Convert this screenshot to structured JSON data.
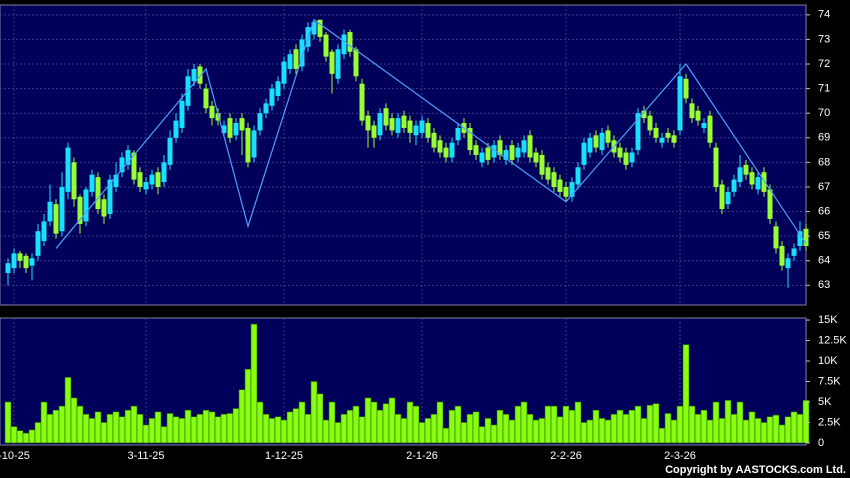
{
  "chart_data": {
    "type": "candlestick",
    "copyright": "Copyright by AASTOCKS.com Ltd.",
    "categories": [
      null,
      "-10-25",
      null,
      null,
      null,
      null,
      null,
      null,
      null,
      null,
      null,
      null,
      null,
      null,
      null,
      null,
      null,
      null,
      null,
      null,
      null,
      null,
      null,
      "3-11-25",
      null,
      null,
      null,
      null,
      null,
      null,
      null,
      null,
      null,
      null,
      null,
      null,
      null,
      null,
      null,
      null,
      null,
      null,
      null,
      null,
      null,
      null,
      "1-12-25",
      null,
      null,
      null,
      null,
      null,
      null,
      null,
      null,
      null,
      null,
      null,
      null,
      null,
      null,
      null,
      null,
      null,
      null,
      null,
      null,
      null,
      null,
      "2-1-26",
      null,
      null,
      null,
      null,
      null,
      null,
      null,
      null,
      null,
      null,
      null,
      null,
      null,
      null,
      null,
      null,
      null,
      null,
      null,
      null,
      null,
      null,
      null,
      "2-2-26",
      null,
      null,
      null,
      null,
      null,
      null,
      null,
      null,
      null,
      null,
      null,
      null,
      null,
      null,
      null,
      null,
      null,
      null,
      "2-3-26",
      null,
      null,
      null,
      null,
      null,
      null,
      null,
      null,
      null,
      null,
      null,
      null,
      null,
      null,
      null,
      null,
      null,
      null,
      null,
      null,
      null
    ],
    "open": [
      63.5,
      63.7,
      64.3,
      64.2,
      63.8,
      64.2,
      64.8,
      65.6,
      66.3,
      65.2,
      66.8,
      68.0,
      66.6,
      65.6,
      66.8,
      67.4,
      66.5,
      65.9,
      67.0,
      67.6,
      67.9,
      68.4,
      67.6,
      66.9,
      67.1,
      67.6,
      67.2,
      67.9,
      69.0,
      69.4,
      70.3,
      71.3,
      71.9,
      71.0,
      70.3,
      70.0,
      69.2,
      69.8,
      69.1,
      69.8,
      69.4,
      68.2,
      69.3,
      70.0,
      70.3,
      70.7,
      71.2,
      71.8,
      72.6,
      71.9,
      72.7,
      73.2,
      73.8,
      73.2,
      72.5,
      71.4,
      72.4,
      73.3,
      72.6,
      71.2,
      69.9,
      69.5,
      69.1,
      70.2,
      69.8,
      69.2,
      69.9,
      69.7,
      69.1,
      69.2,
      69.6,
      69.2,
      68.9,
      68.6,
      68.2,
      68.9,
      69.6,
      69.4,
      68.7,
      68.0,
      68.6,
      68.2,
      68.9,
      68.1,
      68.7,
      68.2,
      68.4,
      69.1,
      68.4,
      68.3,
      67.8,
      67.6,
      67.3,
      67.0,
      66.6,
      67.1,
      67.9,
      68.4,
      69.1,
      68.5,
      69.3,
      68.9,
      68.6,
      68.4,
      68.0,
      68.5,
      70.1,
      69.9,
      69.4,
      68.8,
      69.2,
      69.1,
      69.3,
      71.4,
      70.4,
      70.1,
      69.4,
      69.9,
      68.6,
      67.1,
      66.3,
      66.8,
      67.2,
      67.9,
      67.6,
      66.9,
      67.6,
      66.9,
      65.4,
      64.6,
      63.7,
      64.2,
      64.6,
      65.3
    ],
    "high": [
      64.1,
      64.5,
      64.4,
      64.3,
      64.3,
      65.5,
      65.9,
      67.1,
      66.5,
      67.6,
      68.8,
      68.2,
      66.7,
      67.0,
      67.7,
      67.6,
      66.7,
      67.5,
      68.0,
      68.4,
      68.7,
      68.5,
      67.8,
      67.4,
      67.7,
      67.8,
      68.3,
      69.3,
      70.0,
      70.8,
      71.8,
      72.0,
      72.0,
      71.2,
      70.5,
      70.2,
      69.7,
      70.0,
      69.8,
      70.0,
      69.6,
      69.5,
      70.2,
      70.6,
      71.2,
      71.5,
      72.3,
      72.6,
      72.8,
      73.2,
      73.7,
      73.8,
      73.8,
      73.3,
      72.6,
      72.8,
      73.4,
      73.4,
      72.7,
      71.4,
      70.1,
      69.7,
      70.2,
      70.4,
      70.0,
      70.0,
      70.1,
      69.9,
      69.7,
      69.9,
      69.8,
      69.4,
      69.1,
      68.8,
      69.0,
      69.6,
      69.8,
      69.6,
      68.9,
      68.6,
      68.8,
      68.9,
      69.1,
      68.7,
      68.9,
      68.8,
      69.1,
      69.3,
      68.6,
      68.5,
      68.0,
      67.8,
      67.5,
      67.2,
      67.4,
      68.0,
      69.0,
      69.2,
      69.3,
      69.4,
      69.5,
      69.1,
      68.8,
      68.6,
      68.6,
      70.2,
      70.3,
      70.1,
      69.6,
      69.2,
      69.4,
      69.3,
      72.0,
      71.6,
      70.6,
      70.3,
      69.8,
      70.1,
      68.8,
      67.3,
      67.0,
      67.5,
      68.3,
      68.1,
      67.8,
      67.6,
      67.8,
      67.1,
      65.6,
      64.8,
      64.3,
      64.7,
      65.6,
      65.5
    ],
    "low": [
      63.0,
      63.5,
      63.7,
      63.5,
      63.2,
      64.0,
      64.6,
      65.4,
      64.9,
      65.0,
      66.5,
      66.2,
      65.1,
      65.4,
      66.6,
      65.9,
      65.5,
      65.7,
      66.8,
      67.4,
      67.7,
      67.1,
      66.8,
      66.7,
      66.9,
      66.7,
      67.0,
      67.7,
      68.8,
      69.2,
      70.1,
      71.1,
      71.0,
      70.0,
      69.5,
      69.5,
      69.0,
      68.8,
      68.9,
      68.3,
      67.8,
      68.0,
      69.1,
      69.8,
      70.1,
      70.5,
      71.0,
      71.6,
      71.6,
      71.7,
      72.5,
      73.0,
      72.9,
      72.1,
      70.8,
      71.2,
      72.2,
      72.3,
      71.3,
      69.5,
      68.6,
      68.6,
      68.9,
      69.3,
      69.1,
      69.0,
      69.2,
      68.8,
      68.7,
      69.0,
      68.8,
      68.4,
      68.2,
      68.0,
      68.0,
      68.7,
      69.0,
      68.3,
      68.1,
      67.8,
      67.9,
      68.0,
      68.1,
      67.9,
      67.9,
      68.0,
      68.2,
      68.0,
      67.8,
      67.3,
      67.1,
      66.8,
      66.6,
      66.4,
      66.4,
      66.9,
      67.7,
      68.2,
      68.4,
      68.3,
      68.6,
      68.2,
      68.0,
      67.7,
      67.8,
      68.3,
      69.6,
      69.1,
      68.8,
      68.6,
      68.8,
      68.6,
      69.1,
      70.4,
      69.6,
      69.5,
      69.2,
      68.6,
      66.8,
      65.9,
      66.1,
      66.6,
      67.0,
      67.3,
      66.9,
      66.7,
      66.6,
      65.5,
      64.3,
      63.6,
      62.9,
      64.0,
      64.4,
      64.4
    ],
    "close": [
      63.9,
      64.3,
      64.0,
      63.7,
      64.1,
      65.2,
      65.6,
      66.4,
      65.1,
      67.0,
      68.6,
      66.5,
      65.5,
      66.9,
      67.5,
      66.1,
      65.8,
      67.3,
      67.5,
      68.2,
      68.5,
      67.3,
      67.0,
      67.2,
      67.5,
      67.0,
      68.0,
      69.0,
      69.7,
      70.5,
      71.5,
      71.8,
      71.2,
      70.2,
      69.8,
      69.7,
      69.5,
      69.0,
      69.6,
      69.3,
      68.0,
      69.3,
      70.0,
      70.4,
      71.0,
      71.3,
      72.1,
      72.4,
      71.8,
      73.0,
      73.5,
      73.7,
      73.1,
      72.3,
      71.6,
      72.6,
      73.2,
      72.5,
      71.5,
      69.7,
      69.3,
      69.0,
      70.0,
      69.5,
      69.3,
      69.8,
      69.4,
      69.2,
      69.5,
      69.7,
      69.0,
      68.6,
      68.4,
      68.2,
      68.8,
      69.4,
      69.2,
      68.5,
      68.3,
      68.4,
      68.1,
      68.7,
      68.3,
      68.5,
      68.1,
      68.6,
      68.9,
      68.2,
      68.0,
      67.5,
      67.3,
      67.0,
      66.8,
      66.6,
      67.2,
      67.8,
      68.8,
      69.0,
      68.6,
      69.2,
      68.8,
      68.4,
      68.2,
      67.9,
      68.4,
      70.0,
      69.8,
      69.3,
      69.0,
      69.0,
      69.0,
      68.8,
      71.5,
      70.6,
      69.8,
      69.7,
      69.6,
      68.8,
      67.0,
      66.1,
      66.8,
      67.3,
      67.8,
      67.5,
      67.1,
      67.4,
      66.8,
      65.7,
      64.5,
      63.8,
      64.1,
      64.5,
      65.2,
      64.6
    ],
    "volume": [
      5000,
      2000,
      1500,
      1200,
      1600,
      2500,
      5000,
      3500,
      4000,
      4500,
      8000,
      5500,
      4500,
      3500,
      3000,
      3800,
      2500,
      3500,
      3800,
      3200,
      4000,
      4500,
      3500,
      2200,
      3000,
      3800,
      2000,
      3600,
      3200,
      3000,
      4000,
      3200,
      3500,
      4000,
      3800,
      3200,
      3500,
      3600,
      4200,
      6500,
      9000,
      14500,
      5000,
      3500,
      3000,
      3200,
      2800,
      3800,
      4200,
      5000,
      3500,
      7500,
      6000,
      2800,
      5000,
      2500,
      3500,
      4000,
      4500,
      3200,
      5500,
      5000,
      4000,
      4800,
      5500,
      3500,
      3000,
      5000,
      4500,
      2500,
      3000,
      3500,
      5000,
      1800,
      4000,
      4500,
      2500,
      3500,
      3800,
      2000,
      3000,
      2200,
      4000,
      3500,
      2800,
      4500,
      5000,
      3500,
      2800,
      3000,
      4500,
      4500,
      3200,
      4500,
      4000,
      5000,
      2500,
      2800,
      4000,
      3000,
      2800,
      3500,
      4000,
      3500,
      4000,
      4500,
      3000,
      4600,
      4800,
      1800,
      3600,
      2800,
      4500,
      12000,
      4500,
      3500,
      4000,
      2800,
      5000,
      3000,
      5200,
      3500,
      5000,
      2800,
      3800,
      3000,
      2500,
      3200,
      3400,
      2200,
      3200,
      3800,
      3500,
      5200
    ],
    "zigzag": {
      "x": [
        8,
        33,
        40,
        51,
        93,
        113,
        133
      ],
      "values": [
        64.5,
        71.8,
        65.4,
        73.8,
        66.4,
        72.0,
        64.7
      ],
      "color": "#4d9fff"
    },
    "up_color": "#19e0ff",
    "down_color": "#99ff33",
    "volume_color": "#88ff11",
    "ylim": [
      62.2,
      74.4
    ],
    "yticks": [
      63,
      64,
      65,
      66,
      67,
      68,
      69,
      70,
      71,
      72,
      73,
      74
    ],
    "y2lim": [
      -250,
      15250
    ],
    "y2ticks": [
      0,
      {
        "value": 2500,
        "label": "2.5K"
      },
      {
        "value": 5000,
        "label": "5K"
      },
      {
        "value": 7500,
        "label": "7.5K"
      },
      {
        "value": 10000,
        "label": "10K"
      },
      {
        "value": 12500,
        "label": "12.5K"
      },
      {
        "value": 15000,
        "label": "15K"
      }
    ],
    "grid": true
  }
}
